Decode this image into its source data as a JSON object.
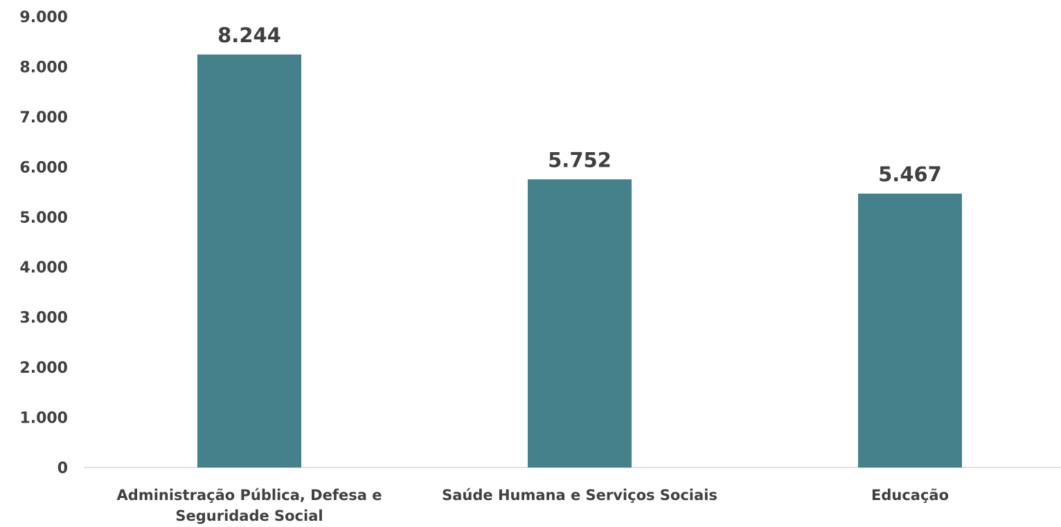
{
  "chart_data": {
    "type": "bar",
    "categories": [
      [
        "Administração Pública, Defesa e",
        "Seguridade Social"
      ],
      [
        "Saúde Humana e Serviços Sociais"
      ],
      [
        "Educação"
      ]
    ],
    "values": [
      8244,
      5752,
      5467
    ],
    "data_labels": [
      "8.244",
      "5.752",
      "5.467"
    ],
    "y_ticks": [
      0,
      1000,
      2000,
      3000,
      4000,
      5000,
      6000,
      7000,
      8000,
      9000
    ],
    "y_tick_labels": [
      "0",
      "1.000",
      "2.000",
      "3.000",
      "4.000",
      "5.000",
      "6.000",
      "7.000",
      "8.000",
      "9.000"
    ],
    "ylim": [
      0,
      9000
    ],
    "grid": false,
    "legend": "none",
    "colors": {
      "bar": "#45818a",
      "text": "#404040",
      "axis": "#d9d9d9"
    }
  }
}
